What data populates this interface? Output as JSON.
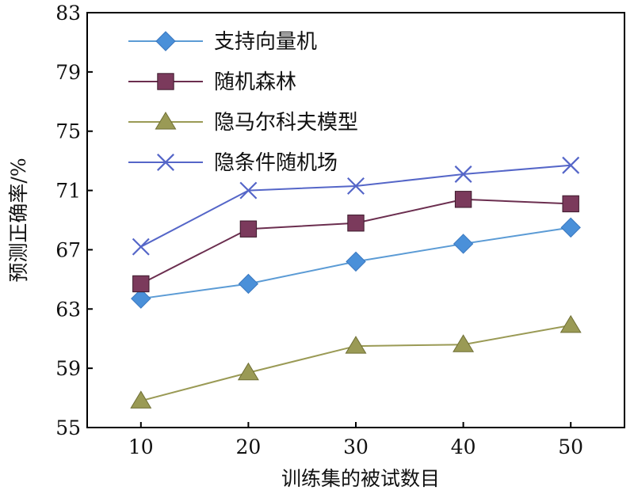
{
  "chart_data": {
    "type": "line",
    "title": "",
    "xlabel": "训练集的被试数目",
    "ylabel": "预测正确率/%",
    "x": [
      10,
      20,
      30,
      40,
      50
    ],
    "xlim": [
      5,
      55
    ],
    "ylim": [
      55,
      83
    ],
    "yticks": [
      55,
      59,
      63,
      67,
      71,
      75,
      79,
      83
    ],
    "xticks": [
      10,
      20,
      30,
      40,
      50
    ],
    "grid": false,
    "legend_position": "top-left",
    "series": [
      {
        "name": "支持向量机",
        "marker": "diamond",
        "color": "#5b9bd5",
        "marker_color": "#4a90d9",
        "values": [
          63.7,
          64.7,
          66.2,
          67.4,
          68.5
        ]
      },
      {
        "name": "随机森林",
        "marker": "square",
        "color": "#6b2e4f",
        "marker_color": "#7b3a5c",
        "values": [
          64.7,
          68.4,
          68.8,
          70.4,
          70.1
        ]
      },
      {
        "name": "隐马尔科夫模型",
        "marker": "triangle",
        "color": "#9a9a55",
        "marker_color": "#9a9a55",
        "values": [
          56.8,
          58.7,
          60.5,
          60.6,
          61.9
        ]
      },
      {
        "name": "隐条件随机场",
        "marker": "x",
        "color": "#5566c8",
        "marker_color": "#5566c8",
        "values": [
          67.2,
          71.0,
          71.3,
          72.1,
          72.7
        ]
      }
    ]
  }
}
